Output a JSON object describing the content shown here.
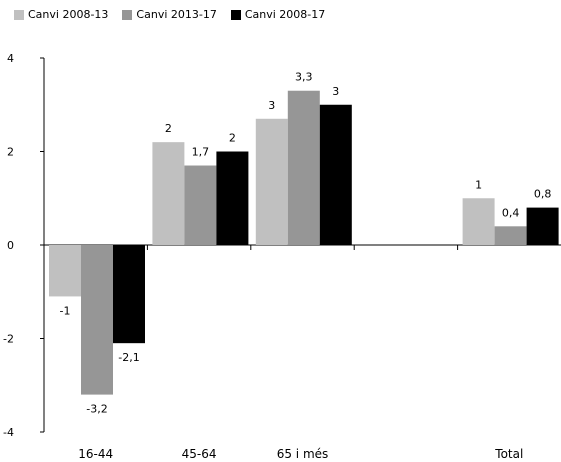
{
  "chart_data": {
    "type": "bar",
    "categories": [
      "16-44",
      "45-64",
      "65 i més",
      "",
      "Total"
    ],
    "series": [
      {
        "name": "Canvi 2008-13",
        "color": "#c0c0c0",
        "values": [
          -1.1,
          2.2,
          2.7,
          null,
          1.0
        ],
        "labels": [
          "-1",
          "2",
          "3",
          "",
          "1"
        ]
      },
      {
        "name": "Canvi 2013-17",
        "color": "#969696",
        "values": [
          -3.2,
          1.7,
          3.3,
          null,
          0.4
        ],
        "labels": [
          "-3,2",
          "1,7",
          "3,3",
          "",
          "0,4"
        ]
      },
      {
        "name": "Canvi 2008-17",
        "color": "#000000",
        "values": [
          -2.1,
          2.0,
          3.0,
          null,
          0.8
        ],
        "labels": [
          "-2,1",
          "2",
          "3",
          "",
          "0,8"
        ]
      }
    ],
    "ylim": [
      -4,
      4
    ],
    "yticks": [
      -4,
      -2,
      0,
      2,
      4
    ],
    "legend_position": "top-left",
    "grid": false
  }
}
